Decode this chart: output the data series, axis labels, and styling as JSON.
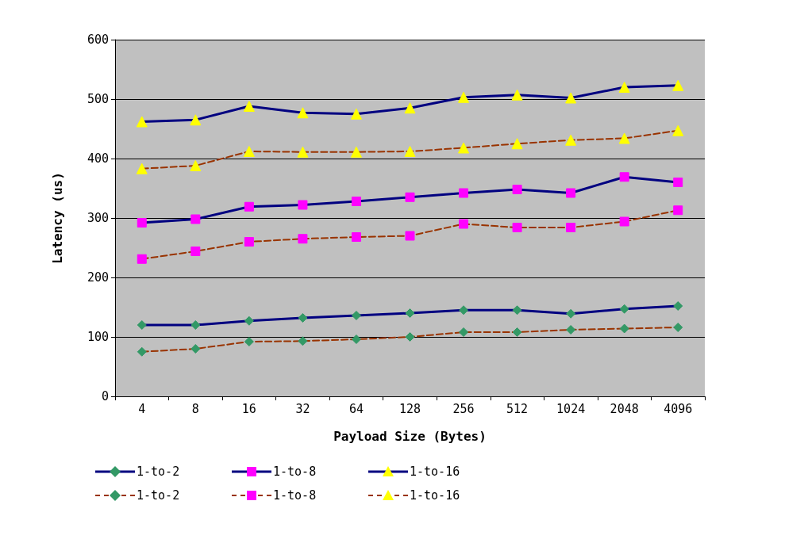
{
  "chart_data": {
    "type": "line",
    "xlabel": "Payload Size (Bytes)",
    "ylabel": "Latency (us)",
    "categories": [
      "4",
      "8",
      "16",
      "32",
      "64",
      "128",
      "256",
      "512",
      "1024",
      "2048",
      "4096"
    ],
    "ylim": [
      0,
      600
    ],
    "yticks": [
      0,
      100,
      200,
      300,
      400,
      500,
      600
    ],
    "grid": "y",
    "legend": "bottom",
    "series": [
      {
        "name": "1-to-2",
        "color": "#339966",
        "marker": "diamond",
        "line_style": "solid",
        "values": [
          120,
          120,
          127,
          132,
          136,
          140,
          145,
          145,
          139,
          147,
          152
        ]
      },
      {
        "name": "1-to-8",
        "color": "#ff00ff",
        "marker": "square",
        "line_style": "solid",
        "values": [
          292,
          298,
          319,
          322,
          328,
          335,
          342,
          348,
          342,
          369,
          360
        ]
      },
      {
        "name": "1-to-16",
        "color": "#ffff00",
        "marker": "triangle",
        "line_style": "solid",
        "values": [
          462,
          465,
          488,
          477,
          475,
          485,
          503,
          507,
          502,
          520,
          523
        ]
      },
      {
        "name": "1-to-2",
        "color": "#339966",
        "marker": "diamond",
        "line_style": "dashed",
        "values": [
          75,
          80,
          92,
          93,
          96,
          100,
          108,
          108,
          112,
          114,
          116
        ]
      },
      {
        "name": "1-to-8",
        "color": "#ff00ff",
        "marker": "square",
        "line_style": "dashed",
        "values": [
          231,
          244,
          260,
          265,
          268,
          270,
          290,
          284,
          284,
          294,
          313
        ]
      },
      {
        "name": "1-to-16",
        "color": "#ffff00",
        "marker": "triangle",
        "line_style": "dashed",
        "values": [
          383,
          388,
          412,
          411,
          411,
          412,
          418,
          425,
          431,
          434,
          447
        ]
      }
    ]
  }
}
